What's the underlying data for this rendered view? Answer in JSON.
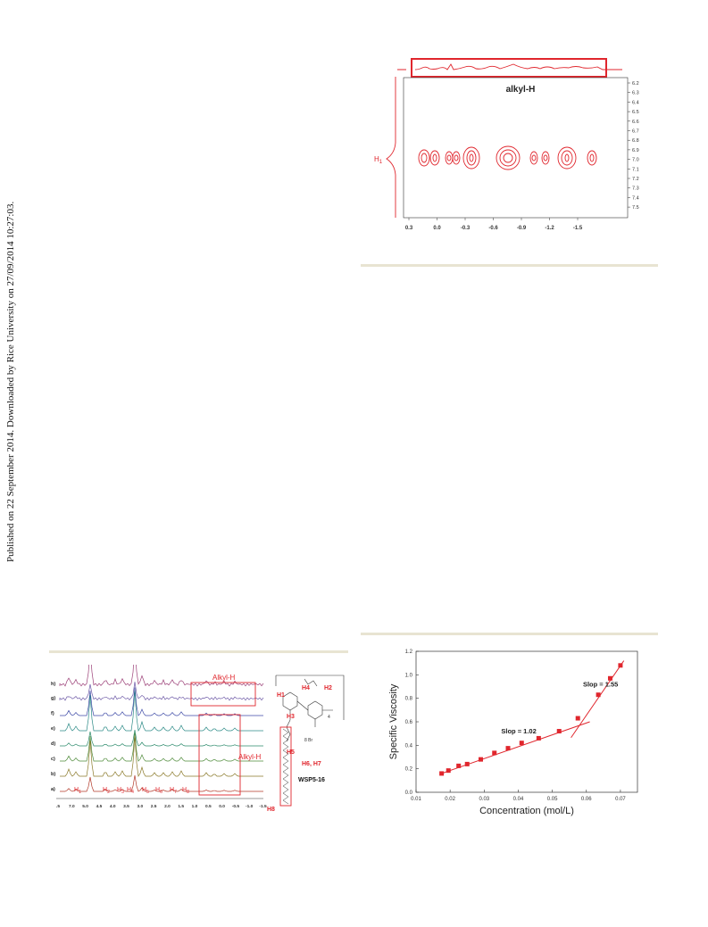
{
  "margin_note": "Published on 22 September 2014. Downloaded by Rice University on 27/09/2014 10:27:03.",
  "colors": {
    "red": "#e0262d",
    "rule": "#e8e4d2"
  },
  "top_right_figure": {
    "proton_label": "H",
    "proton_sub": "1",
    "alkyl_label": "alkyl-H",
    "x_ticks": [
      "0.3",
      "0.0",
      "-0.3",
      "-0.6",
      "-0.9",
      "-1.2",
      "-1.5"
    ],
    "y_ticks": [
      "6.2",
      "6.3",
      "6.4",
      "6.5",
      "6.6",
      "6.7",
      "6.8",
      "6.9",
      "7.0",
      "7.1",
      "7.2",
      "7.3",
      "7.4",
      "7.5"
    ]
  },
  "left_bottom_figure": {
    "trace_labels": [
      "h)",
      "g)",
      "f)",
      "e)",
      "d)",
      "c)",
      "b)",
      "a)"
    ],
    "alkyl_label_top": "Alkyl-H",
    "alkyl_label_right": "Alkyl-H",
    "peak_labels": [
      {
        "t": "H",
        "s": "1"
      },
      {
        "t": "H",
        "s": "2"
      },
      {
        "t": "H",
        "s": "3"
      },
      {
        "t": "H",
        "s": "4"
      },
      {
        "t": "H",
        "s": "5"
      },
      {
        "t": "H",
        "s": "6"
      },
      {
        "t": "H",
        "s": "7"
      },
      {
        "t": "H",
        "s": "8"
      }
    ],
    "x_ticks": [
      ".5",
      "7.0",
      "5.0",
      "4.5",
      "4.0",
      "3.5",
      "3.0",
      "2.5",
      "2.0",
      "1.5",
      "1.0",
      "0.5",
      "0.0",
      "-0.5",
      "-1.0",
      "-1.5"
    ],
    "compound": "WSP5-16",
    "h6h7_label": "H6, H7",
    "h8_label": "H8",
    "h5_label": "H5",
    "h3_label": "H3",
    "h1_label": "H1",
    "h4_label": "H4",
    "h2_label": "H2",
    "counterion": "8 Br",
    "n_label": "4"
  },
  "chart_data": {
    "type": "scatter",
    "xlabel": "Concentration (mol/L)",
    "ylabel": "Specific Viscosity",
    "xlim": [
      0.01,
      0.075
    ],
    "ylim": [
      0.0,
      1.2
    ],
    "x_ticks": [
      "0.01",
      "0.02",
      "0.03",
      "0.04",
      "0.05",
      "0.06",
      "0.07"
    ],
    "y_ticks": [
      "0.0",
      "0.2",
      "0.4",
      "0.6",
      "0.8",
      "1.0",
      "1.2"
    ],
    "series": [
      {
        "x": [
          0.0175,
          0.0195,
          0.0225,
          0.025,
          0.029,
          0.033,
          0.037,
          0.041,
          0.046,
          0.052,
          0.0575,
          0.0635,
          0.067,
          0.07
        ],
        "y": [
          0.16,
          0.185,
          0.225,
          0.24,
          0.28,
          0.335,
          0.375,
          0.42,
          0.46,
          0.52,
          0.63,
          0.83,
          0.97,
          1.08
        ]
      }
    ],
    "fit_lines": [
      {
        "label": "Slop = 1.02",
        "x": [
          0.017,
          0.061
        ],
        "y": [
          0.155,
          0.6
        ]
      },
      {
        "label": "Slop = 1.55",
        "x": [
          0.0555,
          0.071
        ],
        "y": [
          0.465,
          1.12
        ]
      }
    ]
  }
}
